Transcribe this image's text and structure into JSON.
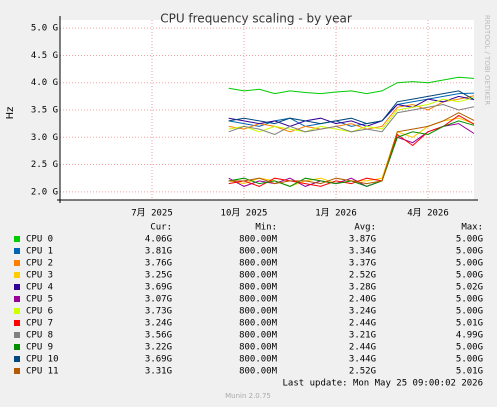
{
  "chart_data": {
    "type": "line",
    "title": "CPU frequency scaling - by year",
    "y_label": "Hz",
    "side_text": "RRDTOOL / TOBI OETIKER",
    "categories": [
      null,
      null,
      null,
      null,
      null,
      null,
      "7月 2025",
      null,
      null,
      null,
      null,
      null,
      "10月 2025",
      null,
      null,
      null,
      null,
      null,
      "1月 2026",
      null,
      null,
      null,
      null,
      null,
      "4月 2026",
      null,
      null,
      null
    ],
    "ylim": [
      1.85,
      5.15
    ],
    "yticks": [
      {
        "value": 2.0,
        "label": "2.0 G"
      },
      {
        "value": 2.5,
        "label": "2.5 G"
      },
      {
        "value": 3.0,
        "label": "3.0 G"
      },
      {
        "value": 3.5,
        "label": "3.5 G"
      },
      {
        "value": 4.0,
        "label": "4.0 G"
      },
      {
        "value": 4.5,
        "label": "4.5 G"
      },
      {
        "value": 5.0,
        "label": "5.0 G"
      }
    ],
    "grid": true,
    "legend_headers": [
      "Cur:",
      "Min:",
      "Avg:",
      "Max:"
    ],
    "series": [
      {
        "name": "CPU 0",
        "color": "#00cc00",
        "stats": [
          "4.06G",
          "800.00M",
          "3.87G",
          "5.00G"
        ],
        "values": [
          null,
          null,
          null,
          null,
          null,
          null,
          null,
          null,
          null,
          null,
          null,
          3.9,
          3.85,
          3.88,
          3.8,
          3.85,
          3.82,
          3.8,
          3.83,
          3.85,
          3.8,
          3.85,
          4.0,
          4.02,
          4.0,
          4.05,
          4.1,
          4.08
        ]
      },
      {
        "name": "CPU 1",
        "color": "#0066b3",
        "stats": [
          "3.81G",
          "800.00M",
          "3.34G",
          "5.00G"
        ],
        "values": [
          null,
          null,
          null,
          null,
          null,
          null,
          null,
          null,
          null,
          null,
          null,
          3.3,
          3.25,
          3.2,
          3.3,
          3.35,
          3.2,
          3.25,
          3.3,
          3.2,
          3.25,
          3.3,
          3.6,
          3.65,
          3.7,
          3.75,
          3.8,
          3.81
        ]
      },
      {
        "name": "CPU 2",
        "color": "#ff8000",
        "stats": [
          "3.76G",
          "800.00M",
          "3.37G",
          "5.00G"
        ],
        "values": [
          null,
          null,
          null,
          null,
          null,
          null,
          null,
          null,
          null,
          null,
          null,
          3.2,
          3.15,
          3.25,
          3.2,
          3.1,
          3.2,
          3.15,
          3.2,
          3.25,
          3.15,
          3.2,
          3.55,
          3.6,
          3.5,
          3.65,
          3.7,
          3.76
        ]
      },
      {
        "name": "CPU 3",
        "color": "#ffcc00",
        "stats": [
          "3.25G",
          "800.00M",
          "2.52G",
          "5.00G"
        ],
        "values": [
          null,
          null,
          null,
          null,
          null,
          null,
          null,
          null,
          null,
          null,
          null,
          2.2,
          2.15,
          2.25,
          2.2,
          2.1,
          2.2,
          2.25,
          2.15,
          2.2,
          2.2,
          2.25,
          3.1,
          3.0,
          3.2,
          3.3,
          3.35,
          3.25
        ]
      },
      {
        "name": "CPU 4",
        "color": "#330099",
        "stats": [
          "3.69G",
          "800.00M",
          "3.28G",
          "5.02G"
        ],
        "values": [
          null,
          null,
          null,
          null,
          null,
          null,
          null,
          null,
          null,
          null,
          null,
          3.35,
          3.3,
          3.25,
          3.3,
          3.2,
          3.3,
          3.35,
          3.25,
          3.3,
          3.2,
          3.3,
          3.6,
          3.55,
          3.7,
          3.65,
          3.75,
          3.69
        ]
      },
      {
        "name": "CPU 5",
        "color": "#990099",
        "stats": [
          "3.07G",
          "800.00M",
          "2.40G",
          "5.00G"
        ],
        "values": [
          null,
          null,
          null,
          null,
          null,
          null,
          null,
          null,
          null,
          null,
          null,
          2.25,
          2.1,
          2.2,
          2.15,
          2.25,
          2.1,
          2.2,
          2.15,
          2.25,
          2.1,
          2.2,
          3.0,
          2.9,
          3.1,
          3.2,
          3.25,
          3.07
        ]
      },
      {
        "name": "CPU 6",
        "color": "#ccff00",
        "stats": [
          "3.73G",
          "800.00M",
          "3.24G",
          "5.00G"
        ],
        "values": [
          null,
          null,
          null,
          null,
          null,
          null,
          null,
          null,
          null,
          null,
          null,
          3.15,
          3.2,
          3.1,
          3.2,
          3.15,
          3.1,
          3.2,
          3.15,
          3.1,
          3.2,
          3.15,
          3.5,
          3.55,
          3.6,
          3.7,
          3.65,
          3.73
        ]
      },
      {
        "name": "CPU 7",
        "color": "#ff0000",
        "stats": [
          "3.24G",
          "800.00M",
          "2.44G",
          "5.01G"
        ],
        "values": [
          null,
          null,
          null,
          null,
          null,
          null,
          null,
          null,
          null,
          null,
          null,
          2.15,
          2.2,
          2.1,
          2.25,
          2.2,
          2.15,
          2.1,
          2.2,
          2.15,
          2.25,
          2.2,
          3.05,
          2.85,
          3.1,
          3.2,
          3.4,
          3.24
        ]
      },
      {
        "name": "CPU 8",
        "color": "#808080",
        "stats": [
          "3.56G",
          "800.00M",
          "3.21G",
          "4.99G"
        ],
        "values": [
          null,
          null,
          null,
          null,
          null,
          null,
          null,
          null,
          null,
          null,
          null,
          3.1,
          3.2,
          3.15,
          3.05,
          3.2,
          3.1,
          3.15,
          3.2,
          3.1,
          3.15,
          3.1,
          3.45,
          3.5,
          3.55,
          3.6,
          3.5,
          3.56
        ]
      },
      {
        "name": "CPU 9",
        "color": "#008f00",
        "stats": [
          "3.22G",
          "800.00M",
          "2.44G",
          "5.00G"
        ],
        "values": [
          null,
          null,
          null,
          null,
          null,
          null,
          null,
          null,
          null,
          null,
          null,
          2.2,
          2.25,
          2.15,
          2.2,
          2.1,
          2.25,
          2.2,
          2.15,
          2.2,
          2.1,
          2.2,
          3.0,
          3.1,
          3.05,
          3.2,
          3.3,
          3.22
        ]
      },
      {
        "name": "CPU 10",
        "color": "#00487d",
        "stats": [
          "3.69G",
          "800.00M",
          "3.44G",
          "5.00G"
        ],
        "values": [
          null,
          null,
          null,
          null,
          null,
          null,
          null,
          null,
          null,
          null,
          null,
          3.3,
          3.35,
          3.3,
          3.25,
          3.35,
          3.3,
          3.25,
          3.3,
          3.35,
          3.25,
          3.3,
          3.65,
          3.7,
          3.75,
          3.8,
          3.85,
          3.69
        ]
      },
      {
        "name": "CPU 11",
        "color": "#b35a00",
        "stats": [
          "3.31G",
          "800.00M",
          "2.52G",
          "5.01G"
        ],
        "values": [
          null,
          null,
          null,
          null,
          null,
          null,
          null,
          null,
          null,
          null,
          null,
          2.2,
          2.2,
          2.25,
          2.15,
          2.2,
          2.2,
          2.15,
          2.25,
          2.2,
          2.15,
          2.2,
          3.1,
          3.15,
          3.2,
          3.3,
          3.45,
          3.31
        ]
      }
    ],
    "last_update": "Last update: Mon May 25 09:00:02 2026",
    "footer": "Munin 2.0.75"
  }
}
